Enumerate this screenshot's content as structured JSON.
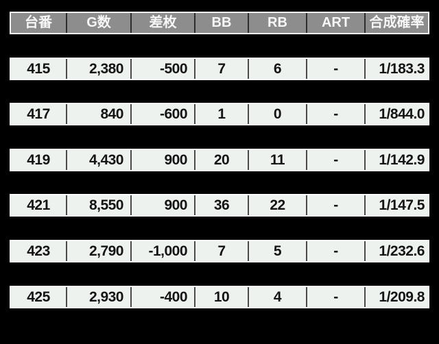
{
  "colors": {
    "background": "#000000",
    "header_bg": "#8d8d8d",
    "header_text": "#f7f7f7",
    "header_divider": "#2e2e2e",
    "row_bg": "#edf2ef",
    "row_text": "#141414",
    "row_divider": "#4a4a4a",
    "outer_border": "#ffffff"
  },
  "chart_data": {
    "type": "table",
    "title": "",
    "columns": [
      "台番",
      "G数",
      "差枚",
      "BB",
      "RB",
      "ART",
      "合成確率"
    ],
    "rows": [
      [
        "415",
        "2,380",
        "-500",
        "7",
        "6",
        "-",
        "1/183.3"
      ],
      [
        "417",
        "840",
        "-600",
        "1",
        "0",
        "-",
        "1/844.0"
      ],
      [
        "419",
        "4,430",
        "900",
        "20",
        "11",
        "-",
        "1/142.9"
      ],
      [
        "421",
        "8,550",
        "900",
        "36",
        "22",
        "-",
        "1/147.5"
      ],
      [
        "423",
        "2,790",
        "-1,000",
        "7",
        "5",
        "-",
        "1/232.6"
      ],
      [
        "425",
        "2,930",
        "-400",
        "10",
        "4",
        "-",
        "1/209.8"
      ]
    ],
    "layout_hints": {
      "row_gaps": "black gap row between each visible data row",
      "alignment": [
        "center",
        "right",
        "right",
        "center",
        "center",
        "center",
        "right"
      ]
    }
  }
}
